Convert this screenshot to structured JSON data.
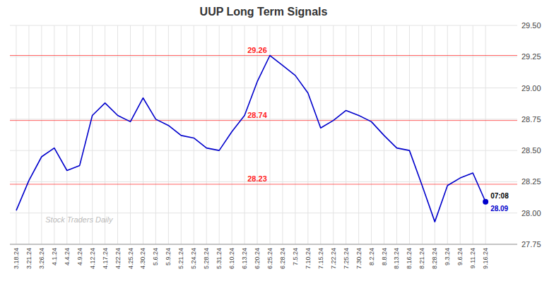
{
  "chart_data": {
    "type": "line",
    "title": "UUP Long Term Signals",
    "categories": [
      "3.18.24",
      "3.21.24",
      "3.26.24",
      "4.1.24",
      "4.4.24",
      "4.9.24",
      "4.12.24",
      "4.17.24",
      "4.22.24",
      "4.25.24",
      "4.30.24",
      "5.6.24",
      "5.9.24",
      "5.21.24",
      "5.24.24",
      "5.28.24",
      "5.31.24",
      "6.10.24",
      "6.13.24",
      "6.20.24",
      "6.25.24",
      "6.28.24",
      "7.5.24",
      "7.10.24",
      "7.15.24",
      "7.22.24",
      "7.25.24",
      "7.30.24",
      "8.2.24",
      "8.8.24",
      "8.13.24",
      "8.16.24",
      "8.21.24",
      "8.28.24",
      "9.3.24",
      "9.6.24",
      "9.11.24",
      "9.16.24"
    ],
    "values": [
      28.02,
      28.26,
      28.45,
      28.52,
      28.34,
      28.38,
      28.78,
      28.88,
      28.78,
      28.73,
      28.92,
      28.75,
      28.7,
      28.62,
      28.6,
      28.52,
      28.5,
      28.65,
      28.78,
      29.05,
      29.26,
      29.18,
      29.1,
      28.96,
      28.68,
      28.74,
      28.82,
      28.78,
      28.73,
      28.62,
      28.52,
      28.5,
      28.22,
      27.93,
      28.22,
      28.28,
      28.32,
      28.09
    ],
    "color": "#0000cc",
    "ylim": [
      27.75,
      29.5
    ],
    "yticks": [
      27.75,
      {
        "value": 28.0,
        "label": "28.00"
      },
      28.25,
      {
        "value": 28.5,
        "label": "28.50"
      },
      28.75,
      {
        "value": 29.0,
        "label": "29.00"
      },
      29.25,
      {
        "value": 29.5,
        "label": "29.50"
      }
    ],
    "grid": true,
    "reference_lines": [
      {
        "value": 29.26,
        "label": "29.26",
        "color": "#ff2222"
      },
      {
        "value": 28.74,
        "label": "28.74",
        "color": "#ff2222"
      },
      {
        "value": 28.23,
        "label": "28.23",
        "color": "#ff2222"
      }
    ],
    "end_label_time": "07:08",
    "end_label_price": "28.09",
    "watermark": "Stock Traders Daily"
  }
}
